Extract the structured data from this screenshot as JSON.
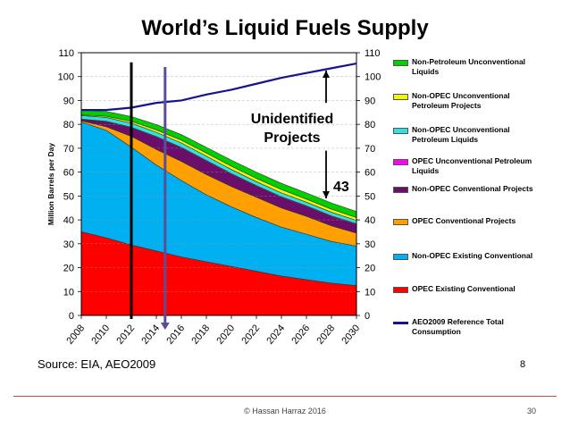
{
  "title": "World’s Liquid Fuels Supply",
  "source": "Source: EIA, AEO2009",
  "page_number": "8",
  "footer": {
    "copyright": "© Hassan Harraz 2016",
    "slide_number": "30"
  },
  "colors": {
    "opec_existing": "#ff0000",
    "nonopec_existing": "#00b0f0",
    "opec_conventional": "#ffa000",
    "nonopec_conventional": "#6a0e6a",
    "opec_unconventional": "#ff00ff",
    "nonopec_unconventional": "#33e0e0",
    "nonopec_projects": "#f5f500",
    "non_petroleum": "#00d000",
    "reference": "#14148c",
    "footer_rule": "#c0504d"
  },
  "chart_data": {
    "type": "area",
    "title": "World’s Liquid Fuels Supply",
    "ylabel": "Million Barrels per Day",
    "ylim": [
      0,
      110
    ],
    "yticks": [
      "0",
      "10",
      "20",
      "30",
      "40",
      "50",
      "60",
      "70",
      "80",
      "90",
      "100",
      "110"
    ],
    "x": [
      2008,
      2010,
      2012,
      2014,
      2016,
      2018,
      2020,
      2022,
      2024,
      2026,
      2028,
      2030
    ],
    "xticks": [
      "2008",
      "2010",
      "2012",
      "2014",
      "2016",
      "2018",
      "2020",
      "2022",
      "2024",
      "2026",
      "2028",
      "2030"
    ],
    "series": [
      {
        "name": "OPEC Existing Conventional",
        "key": "opec_existing",
        "values": [
          35,
          32.5,
          29.5,
          27,
          24.5,
          22.5,
          20.5,
          18.5,
          16.5,
          15,
          13.5,
          12.5
        ]
      },
      {
        "name": "Non-OPEC Existing Conventional",
        "key": "nonopec_existing",
        "values": [
          46,
          45,
          41,
          36,
          32,
          28,
          25,
          22.5,
          20.5,
          19,
          17.5,
          16.5
        ]
      },
      {
        "name": "OPEC Conventional Projects",
        "key": "opec_conventional",
        "values": [
          0.5,
          1.5,
          4.5,
          6.5,
          8,
          8.5,
          8.5,
          8.5,
          8,
          7.5,
          6.5,
          5.5
        ]
      },
      {
        "name": "Non-OPEC Conventional Projects",
        "key": "nonopec_conventional",
        "values": [
          0.5,
          2,
          3.5,
          5,
          5.5,
          5.5,
          5,
          4.5,
          4.3,
          4,
          3.8,
          3.5
        ]
      },
      {
        "name": "OPEC Unconventional Petroleum Liquids",
        "key": "opec_unconventional",
        "values": [
          0.2,
          0.3,
          0.3,
          0.4,
          0.4,
          0.4,
          0.4,
          0.4,
          0.4,
          0.4,
          0.4,
          0.4
        ]
      },
      {
        "name": "Non-OPEC Unconventional Petroleum Liquids",
        "key": "nonopec_unconventional",
        "values": [
          1.5,
          1.6,
          1.7,
          1.8,
          1.8,
          1.8,
          1.7,
          1.6,
          1.6,
          1.5,
          1.5,
          1.4
        ]
      },
      {
        "name": "Non-OPEC Unconventional Petroleum Projects",
        "key": "nonopec_projects",
        "values": [
          0.3,
          0.5,
          0.8,
          1,
          1.2,
          1.3,
          1.4,
          1.4,
          1.4,
          1.3,
          1.3,
          1.2
        ]
      },
      {
        "name": "Non-Petroleum Unconventional Liquids",
        "key": "non_petroleum",
        "values": [
          2,
          2,
          2,
          2.2,
          2.3,
          2.4,
          2.5,
          2.6,
          2.6,
          2.6,
          2.6,
          2.5
        ]
      }
    ],
    "reference_line": {
      "name": "AEO2009 Reference Total Consumption",
      "key": "reference",
      "values": [
        86,
        86,
        87,
        89,
        90,
        92.5,
        94.5,
        97,
        99.5,
        101.5,
        103.5,
        105.5
      ]
    },
    "annotations": {
      "unidentified_projects": "Unidentified Projects",
      "gap_value": "43",
      "vertical_markers": [
        2012,
        2014.7
      ]
    }
  },
  "legend": [
    {
      "label": "Non-Petroleum Unconventional Liquids",
      "key": "non_petroleum"
    },
    {
      "label": "Non-OPEC Unconventional Petroleum Projects",
      "key": "nonopec_projects"
    },
    {
      "label": "Non-OPEC Unconventional Petroleum Liquids",
      "key": "nonopec_unconventional"
    },
    {
      "label": "OPEC Unconventional Petroleum Liquids",
      "key": "opec_unconventional"
    },
    {
      "label": "Non-OPEC Conventional Projects",
      "key": "nonopec_conventional"
    },
    {
      "label": "OPEC Conventional Projects",
      "key": "opec_conventional"
    },
    {
      "label": "Non-OPEC Existing Conventional",
      "key": "nonopec_existing"
    },
    {
      "label": "OPEC Existing Conventional",
      "key": "opec_existing"
    },
    {
      "label": "AEO2009 Reference Total Consumption",
      "key": "reference",
      "line": true
    }
  ]
}
